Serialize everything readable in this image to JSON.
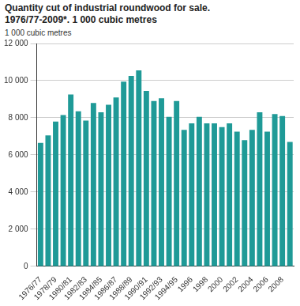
{
  "chart_data": {
    "type": "bar",
    "title": "Quantity cut of industrial roundwood for sale. 1976/77-2009*. 1 000 cubic metres",
    "y_label": "1 000 cubic metres",
    "categories": [
      "1976/77",
      null,
      "1978/79",
      null,
      "1980/81",
      null,
      "1982/83",
      null,
      "1984/85",
      null,
      "1986/87",
      null,
      "1988/89",
      null,
      "1990/91",
      null,
      "1992/93",
      null,
      "1994/95",
      null,
      "1996",
      null,
      "1998",
      null,
      "2000",
      null,
      "2002",
      null,
      "2004",
      null,
      "2006",
      null,
      "2008",
      null
    ],
    "values": [
      6650,
      7050,
      7800,
      8150,
      9250,
      8350,
      7850,
      8800,
      8300,
      8700,
      9100,
      9950,
      10250,
      10550,
      9450,
      8900,
      9050,
      8050,
      8900,
      7350,
      7700,
      8050,
      7700,
      7700,
      7500,
      7700,
      7250,
      6800,
      7350,
      8300,
      7250,
      8200,
      8100,
      6700
    ],
    "color": "#1f9a97",
    "ylim": [
      0,
      12000
    ],
    "yticks": [
      0,
      {
        "value": 2000,
        "label": "2 000"
      },
      {
        "value": 4000,
        "label": "4 000"
      },
      {
        "value": 6000,
        "label": "6 000"
      },
      {
        "value": 8000,
        "label": "8 000"
      },
      {
        "value": 10000,
        "label": "10 000"
      },
      {
        "value": 12000,
        "label": "12 000"
      }
    ],
    "grid": true
  }
}
